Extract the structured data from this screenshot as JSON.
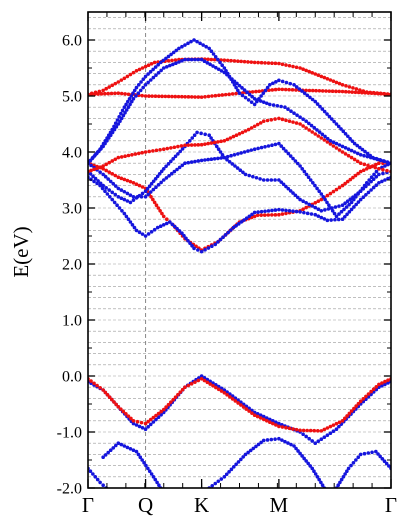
{
  "chart_data": {
    "type": "scatter",
    "title": "",
    "xlabel": "",
    "ylabel": "E(eV)",
    "ylim": [
      -2.0,
      6.5
    ],
    "x_domain": [
      0,
      1
    ],
    "y_ticks": [
      {
        "value": -2.0,
        "label": "-2.0"
      },
      {
        "value": -1.0,
        "label": "-1.0"
      },
      {
        "value": 0.0,
        "label": "0.0"
      },
      {
        "value": 1.0,
        "label": "1.0"
      },
      {
        "value": 2.0,
        "label": "2.0"
      },
      {
        "value": 3.0,
        "label": "3.0"
      },
      {
        "value": 4.0,
        "label": "4.0"
      },
      {
        "value": 5.0,
        "label": "5.0"
      },
      {
        "value": 6.0,
        "label": "6.0"
      }
    ],
    "minor_grid_step": 0.2,
    "grid": true,
    "x_ticks": [
      {
        "value": 0.0,
        "label": "Γ"
      },
      {
        "value": 0.19,
        "label": "Q"
      },
      {
        "value": 0.375,
        "label": "K"
      },
      {
        "value": 0.63,
        "label": "M"
      },
      {
        "value": 1.0,
        "label": "Γ"
      }
    ],
    "vertical_dashed_line_at": 0.19,
    "colors": {
      "red": "#ee1111",
      "blue": "#1515dd",
      "grid": "#999999"
    },
    "series": [
      {
        "color_key": "blue",
        "points": [
          [
            0,
            -0.1
          ],
          [
            0.05,
            -0.25
          ],
          [
            0.1,
            -0.55
          ],
          [
            0.15,
            -0.85
          ],
          [
            0.19,
            -0.95
          ],
          [
            0.25,
            -0.65
          ],
          [
            0.32,
            -0.2
          ],
          [
            0.375,
            0.0
          ],
          [
            0.45,
            -0.25
          ],
          [
            0.55,
            -0.65
          ],
          [
            0.63,
            -0.85
          ],
          [
            0.7,
            -1.0
          ],
          [
            0.75,
            -1.2
          ],
          [
            0.82,
            -0.95
          ],
          [
            0.9,
            -0.5
          ],
          [
            0.96,
            -0.2
          ],
          [
            1.0,
            -0.1
          ]
        ]
      },
      {
        "color_key": "red",
        "points": [
          [
            0,
            -0.05
          ],
          [
            0.05,
            -0.25
          ],
          [
            0.1,
            -0.55
          ],
          [
            0.15,
            -0.8
          ],
          [
            0.19,
            -0.85
          ],
          [
            0.25,
            -0.6
          ],
          [
            0.32,
            -0.2
          ],
          [
            0.375,
            -0.05
          ],
          [
            0.45,
            -0.3
          ],
          [
            0.55,
            -0.7
          ],
          [
            0.63,
            -0.9
          ],
          [
            0.7,
            -0.97
          ],
          [
            0.77,
            -0.98
          ],
          [
            0.84,
            -0.8
          ],
          [
            0.9,
            -0.45
          ],
          [
            0.96,
            -0.15
          ],
          [
            1.0,
            -0.05
          ]
        ]
      },
      {
        "color_key": "blue",
        "points": [
          [
            0,
            -1.65
          ],
          [
            0.04,
            -1.9
          ],
          [
            0.06,
            -2.0
          ]
        ]
      },
      {
        "color_key": "blue",
        "points": [
          [
            0.05,
            -1.45
          ],
          [
            0.1,
            -1.2
          ],
          [
            0.16,
            -1.35
          ],
          [
            0.21,
            -1.75
          ],
          [
            0.24,
            -2.0
          ]
        ]
      },
      {
        "color_key": "blue",
        "points": [
          [
            0.4,
            -2.0
          ],
          [
            0.45,
            -1.8
          ],
          [
            0.52,
            -1.4
          ],
          [
            0.58,
            -1.15
          ],
          [
            0.63,
            -1.12
          ],
          [
            0.68,
            -1.25
          ],
          [
            0.74,
            -1.65
          ],
          [
            0.78,
            -2.0
          ]
        ]
      },
      {
        "color_key": "blue",
        "points": [
          [
            0.82,
            -2.0
          ],
          [
            0.86,
            -1.65
          ],
          [
            0.9,
            -1.4
          ],
          [
            0.95,
            -1.35
          ],
          [
            1.0,
            -1.65
          ]
        ]
      },
      {
        "color_key": "red",
        "points": [
          [
            0,
            3.8
          ],
          [
            0.05,
            3.7
          ],
          [
            0.1,
            3.55
          ],
          [
            0.15,
            3.45
          ],
          [
            0.19,
            3.35
          ],
          [
            0.22,
            3.1
          ],
          [
            0.25,
            2.85
          ],
          [
            0.28,
            2.7
          ],
          [
            0.32,
            2.45
          ],
          [
            0.375,
            2.25
          ],
          [
            0.43,
            2.4
          ],
          [
            0.5,
            2.75
          ],
          [
            0.56,
            2.87
          ],
          [
            0.63,
            2.88
          ],
          [
            0.7,
            2.95
          ],
          [
            0.77,
            3.15
          ],
          [
            0.84,
            3.4
          ],
          [
            0.9,
            3.65
          ],
          [
            0.96,
            3.8
          ],
          [
            1.0,
            3.8
          ]
        ]
      },
      {
        "color_key": "blue",
        "points": [
          [
            0,
            3.8
          ],
          [
            0.05,
            3.6
          ],
          [
            0.1,
            3.35
          ],
          [
            0.15,
            3.2
          ],
          [
            0.19,
            3.2
          ],
          [
            0.25,
            3.5
          ],
          [
            0.32,
            3.8
          ],
          [
            0.375,
            3.85
          ],
          [
            0.45,
            3.9
          ],
          [
            0.55,
            4.05
          ],
          [
            0.63,
            4.15
          ],
          [
            0.7,
            3.75
          ],
          [
            0.77,
            3.25
          ],
          [
            0.82,
            2.85
          ],
          [
            0.87,
            3.1
          ],
          [
            0.92,
            3.45
          ],
          [
            0.96,
            3.7
          ],
          [
            1.0,
            3.8
          ]
        ]
      },
      {
        "color_key": "blue",
        "points": [
          [
            0,
            3.55
          ],
          [
            0.04,
            3.4
          ],
          [
            0.08,
            3.15
          ],
          [
            0.12,
            2.9
          ],
          [
            0.16,
            2.6
          ],
          [
            0.19,
            2.5
          ],
          [
            0.23,
            2.65
          ],
          [
            0.27,
            2.75
          ],
          [
            0.31,
            2.55
          ],
          [
            0.35,
            2.28
          ],
          [
            0.375,
            2.22
          ],
          [
            0.42,
            2.35
          ],
          [
            0.48,
            2.65
          ],
          [
            0.55,
            2.92
          ],
          [
            0.63,
            2.97
          ],
          [
            0.7,
            2.93
          ],
          [
            0.75,
            2.88
          ],
          [
            0.79,
            2.78
          ],
          [
            0.84,
            2.8
          ],
          [
            0.9,
            3.15
          ],
          [
            0.96,
            3.45
          ],
          [
            1.0,
            3.55
          ]
        ]
      },
      {
        "color_key": "blue",
        "points": [
          [
            0,
            3.65
          ],
          [
            0.05,
            3.4
          ],
          [
            0.1,
            3.2
          ],
          [
            0.14,
            3.1
          ],
          [
            0.19,
            3.3
          ],
          [
            0.25,
            3.7
          ],
          [
            0.32,
            4.1
          ],
          [
            0.36,
            4.35
          ],
          [
            0.4,
            4.3
          ],
          [
            0.45,
            3.9
          ],
          [
            0.52,
            3.6
          ],
          [
            0.58,
            3.5
          ],
          [
            0.63,
            3.5
          ],
          [
            0.7,
            3.15
          ],
          [
            0.77,
            2.95
          ],
          [
            0.84,
            3.05
          ],
          [
            0.9,
            3.3
          ],
          [
            0.96,
            3.6
          ],
          [
            1.0,
            3.65
          ]
        ]
      },
      {
        "color_key": "red",
        "points": [
          [
            0,
            3.65
          ],
          [
            0.05,
            3.75
          ],
          [
            0.1,
            3.9
          ],
          [
            0.19,
            4.0
          ],
          [
            0.25,
            4.05
          ],
          [
            0.32,
            4.12
          ],
          [
            0.375,
            4.13
          ],
          [
            0.45,
            4.2
          ],
          [
            0.53,
            4.4
          ],
          [
            0.58,
            4.55
          ],
          [
            0.63,
            4.6
          ],
          [
            0.7,
            4.5
          ],
          [
            0.77,
            4.25
          ],
          [
            0.84,
            4.0
          ],
          [
            0.9,
            3.8
          ],
          [
            0.96,
            3.7
          ],
          [
            1.0,
            3.65
          ]
        ]
      },
      {
        "color_key": "red",
        "points": [
          [
            0,
            5.03
          ],
          [
            0.05,
            5.1
          ],
          [
            0.1,
            5.25
          ],
          [
            0.16,
            5.45
          ],
          [
            0.22,
            5.6
          ],
          [
            0.3,
            5.65
          ],
          [
            0.375,
            5.66
          ],
          [
            0.45,
            5.64
          ],
          [
            0.55,
            5.6
          ],
          [
            0.63,
            5.58
          ],
          [
            0.7,
            5.5
          ],
          [
            0.77,
            5.35
          ],
          [
            0.84,
            5.2
          ],
          [
            0.92,
            5.07
          ],
          [
            1.0,
            5.03
          ]
        ]
      },
      {
        "color_key": "red",
        "points": [
          [
            0,
            5.03
          ],
          [
            0.1,
            5.05
          ],
          [
            0.19,
            5.0
          ],
          [
            0.375,
            4.98
          ],
          [
            0.5,
            5.05
          ],
          [
            0.63,
            5.12
          ],
          [
            0.72,
            5.1
          ],
          [
            0.84,
            5.08
          ],
          [
            1.0,
            5.03
          ]
        ]
      },
      {
        "color_key": "blue",
        "points": [
          [
            0,
            3.8
          ],
          [
            0.04,
            4.05
          ],
          [
            0.08,
            4.4
          ],
          [
            0.12,
            4.8
          ],
          [
            0.16,
            5.15
          ],
          [
            0.19,
            5.35
          ],
          [
            0.24,
            5.6
          ],
          [
            0.3,
            5.85
          ],
          [
            0.35,
            6.0
          ],
          [
            0.4,
            5.85
          ],
          [
            0.45,
            5.5
          ],
          [
            0.5,
            5.05
          ],
          [
            0.55,
            4.85
          ],
          [
            0.6,
            5.2
          ],
          [
            0.63,
            5.28
          ],
          [
            0.68,
            5.2
          ],
          [
            0.75,
            4.9
          ],
          [
            0.82,
            4.5
          ],
          [
            0.88,
            4.15
          ],
          [
            0.94,
            3.9
          ],
          [
            1.0,
            3.8
          ]
        ]
      },
      {
        "color_key": "blue",
        "points": [
          [
            0,
            3.8
          ],
          [
            0.05,
            4.1
          ],
          [
            0.1,
            4.5
          ],
          [
            0.15,
            4.95
          ],
          [
            0.19,
            5.2
          ],
          [
            0.25,
            5.5
          ],
          [
            0.32,
            5.65
          ],
          [
            0.375,
            5.65
          ],
          [
            0.45,
            5.42
          ],
          [
            0.55,
            4.95
          ],
          [
            0.6,
            4.85
          ],
          [
            0.65,
            4.8
          ],
          [
            0.72,
            4.55
          ],
          [
            0.8,
            4.2
          ],
          [
            0.9,
            3.95
          ],
          [
            1.0,
            3.8
          ]
        ]
      }
    ]
  }
}
